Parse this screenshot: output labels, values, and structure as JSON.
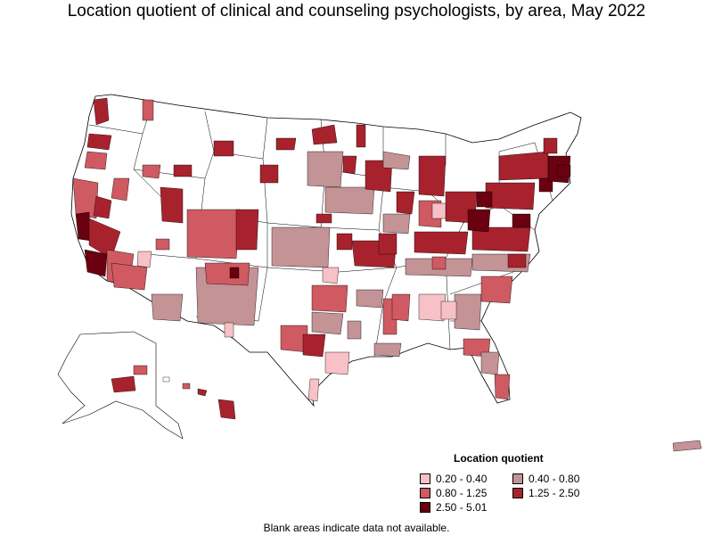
{
  "title": "Location quotient of clinical and counseling psychologists, by area, May 2022",
  "legend": {
    "title": "Location quotient",
    "items": [
      {
        "label": "0.20 - 0.40",
        "color": "#f7c1c7"
      },
      {
        "label": "0.40 - 0.80",
        "color": "#c39396"
      },
      {
        "label": "0.80 - 1.25",
        "color": "#cf5a62"
      },
      {
        "label": "1.25 - 2.50",
        "color": "#a8222d"
      },
      {
        "label": "2.50 - 5.01",
        "color": "#6a0010"
      }
    ]
  },
  "note": "Blank areas indicate data not available.",
  "colors": {
    "border": "#000000",
    "blank": "#ffffff"
  }
}
